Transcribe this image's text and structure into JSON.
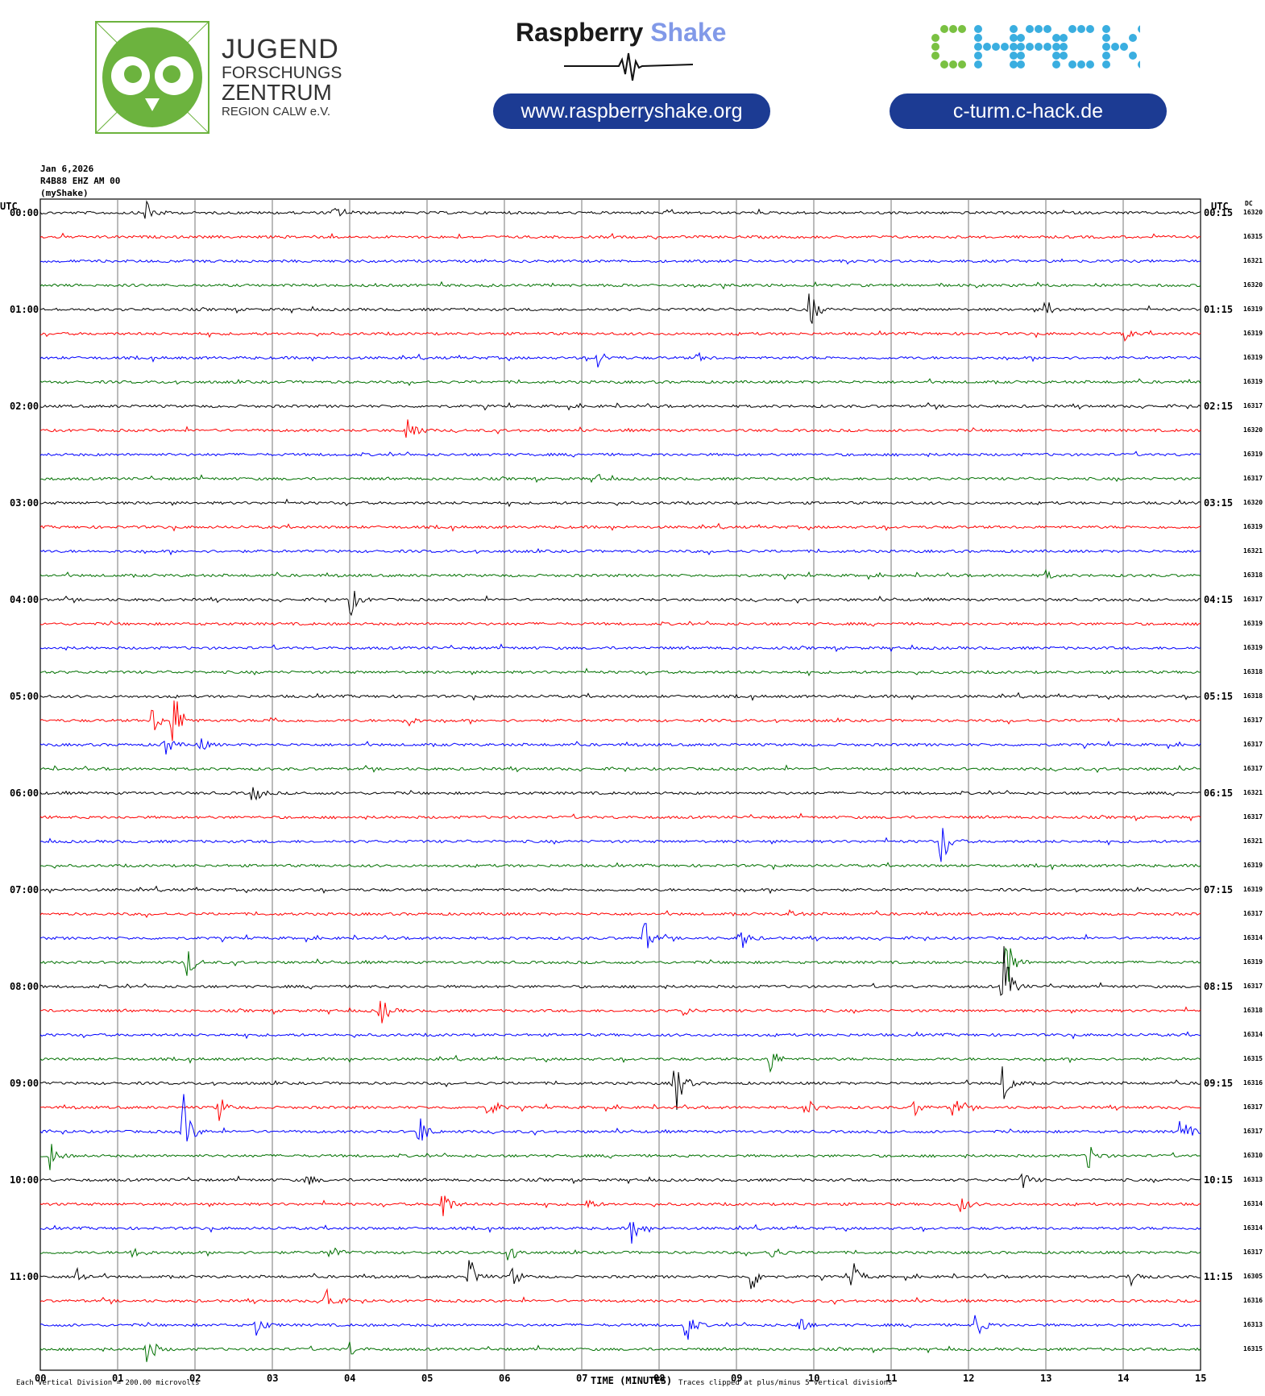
{
  "logos": {
    "jfz_lines": [
      "JUGEND",
      "FORSCHUNGS",
      "ZENTRUM",
      "REGION CALW e.V."
    ],
    "jfz_color": "#6cb33e",
    "rs_word1": "Raspberry",
    "rs_word2": "Shake",
    "rs_url": "www.raspberryshake.org",
    "chack_text": "CHACK",
    "chack_url": "c-turm.c-hack.de",
    "pill_color": "#1c3b93"
  },
  "header": {
    "date": "Jan 6,2026",
    "station": "R4B88 EHZ AM 00",
    "source": "(myShake)"
  },
  "chart_data": {
    "type": "line",
    "subtype": "helicorder",
    "left_axis_title": "UTC",
    "right_axis_title": "UTC",
    "dc_title": "DC",
    "xlabel": "TIME (MINUTES)",
    "x_ticks": [
      "00",
      "01",
      "02",
      "03",
      "04",
      "05",
      "06",
      "07",
      "08",
      "09",
      "10",
      "11",
      "12",
      "13",
      "14",
      "15"
    ],
    "xlim": [
      0,
      15
    ],
    "trace_colors": [
      "#000000",
      "#ff0000",
      "#0000ff",
      "#007000"
    ],
    "hour_labels_left": [
      "00:00",
      "01:00",
      "02:00",
      "03:00",
      "04:00",
      "05:00",
      "06:00",
      "07:00",
      "08:00",
      "09:00",
      "10:00",
      "11:00"
    ],
    "hour_labels_right": [
      "00:15",
      "01:15",
      "02:15",
      "03:15",
      "04:15",
      "05:15",
      "06:15",
      "07:15",
      "08:15",
      "09:15",
      "10:15",
      "11:15"
    ],
    "dc_values": [
      "16320",
      "16315",
      "16321",
      "16320",
      "16319",
      "16319",
      "16319",
      "16319",
      "16317",
      "16320",
      "16319",
      "16317",
      "16320",
      "16319",
      "16321",
      "16318",
      "16317",
      "16319",
      "16319",
      "16318",
      "16318",
      "16317",
      "16317",
      "16317",
      "16321",
      "16317",
      "16321",
      "16319",
      "16319",
      "16317",
      "16314",
      "16319",
      "16317",
      "16318",
      "16314",
      "16315",
      "16316",
      "16317",
      "16317",
      "16310",
      "16313",
      "16314",
      "16314",
      "16317",
      "16305",
      "16316",
      "16313",
      "16315"
    ],
    "footer_scale": "Each Vertical Division =  200.00 microvolts",
    "footer_clip": "Traces clipped at plus/minus 5 vertical divisions",
    "events": [
      {
        "row": 0,
        "min": 1.38,
        "amp": 20
      },
      {
        "row": 0,
        "min": 3.8,
        "amp": 8
      },
      {
        "row": 4,
        "min": 9.95,
        "amp": 28
      },
      {
        "row": 4,
        "min": 13.0,
        "amp": 14
      },
      {
        "row": 5,
        "min": 14.0,
        "amp": 10
      },
      {
        "row": 6,
        "min": 7.2,
        "amp": 14
      },
      {
        "row": 6,
        "min": 8.5,
        "amp": 6
      },
      {
        "row": 9,
        "min": 4.75,
        "amp": 30
      },
      {
        "row": 11,
        "min": 7.2,
        "amp": 6
      },
      {
        "row": 15,
        "min": 13.0,
        "amp": 6
      },
      {
        "row": 16,
        "min": 4.0,
        "amp": 24
      },
      {
        "row": 21,
        "min": 1.72,
        "amp": 50
      },
      {
        "row": 21,
        "min": 1.45,
        "amp": 22
      },
      {
        "row": 21,
        "min": 4.7,
        "amp": 14
      },
      {
        "row": 21,
        "min": 3.0,
        "amp": 6
      },
      {
        "row": 22,
        "min": 1.6,
        "amp": 18
      },
      {
        "row": 22,
        "min": 2.05,
        "amp": 12
      },
      {
        "row": 24,
        "min": 2.75,
        "amp": 16
      },
      {
        "row": 26,
        "min": 11.65,
        "amp": 38
      },
      {
        "row": 29,
        "min": 9.7,
        "amp": 5
      },
      {
        "row": 30,
        "min": 7.8,
        "amp": 28
      },
      {
        "row": 30,
        "min": 9.05,
        "amp": 18
      },
      {
        "row": 31,
        "min": 1.9,
        "amp": 22
      },
      {
        "row": 31,
        "min": 12.5,
        "amp": 40
      },
      {
        "row": 32,
        "min": 12.45,
        "amp": 60
      },
      {
        "row": 33,
        "min": 4.4,
        "amp": 22
      },
      {
        "row": 33,
        "min": 8.3,
        "amp": 8
      },
      {
        "row": 35,
        "min": 9.4,
        "amp": 30
      },
      {
        "row": 36,
        "min": 8.2,
        "amp": 50
      },
      {
        "row": 36,
        "min": 12.45,
        "amp": 30
      },
      {
        "row": 37,
        "min": 2.3,
        "amp": 20
      },
      {
        "row": 37,
        "min": 5.8,
        "amp": 20
      },
      {
        "row": 37,
        "min": 9.9,
        "amp": 14
      },
      {
        "row": 37,
        "min": 11.8,
        "amp": 16
      },
      {
        "row": 37,
        "min": 11.3,
        "amp": 12
      },
      {
        "row": 38,
        "min": 1.85,
        "amp": 48
      },
      {
        "row": 38,
        "min": 4.9,
        "amp": 24
      },
      {
        "row": 38,
        "min": 14.75,
        "amp": 26
      },
      {
        "row": 39,
        "min": 0.12,
        "amp": 20
      },
      {
        "row": 39,
        "min": 13.55,
        "amp": 20
      },
      {
        "row": 40,
        "min": 3.45,
        "amp": 10
      },
      {
        "row": 40,
        "min": 12.7,
        "amp": 12
      },
      {
        "row": 41,
        "min": 5.2,
        "amp": 24
      },
      {
        "row": 41,
        "min": 7.05,
        "amp": 10
      },
      {
        "row": 41,
        "min": 11.9,
        "amp": 12
      },
      {
        "row": 42,
        "min": 7.65,
        "amp": 22
      },
      {
        "row": 43,
        "min": 1.2,
        "amp": 14
      },
      {
        "row": 43,
        "min": 6.05,
        "amp": 22
      },
      {
        "row": 43,
        "min": 3.75,
        "amp": 12
      },
      {
        "row": 43,
        "min": 9.45,
        "amp": 12
      },
      {
        "row": 44,
        "min": 0.45,
        "amp": 18
      },
      {
        "row": 44,
        "min": 5.55,
        "amp": 28
      },
      {
        "row": 44,
        "min": 6.1,
        "amp": 16
      },
      {
        "row": 44,
        "min": 9.2,
        "amp": 22
      },
      {
        "row": 44,
        "min": 10.5,
        "amp": 22
      },
      {
        "row": 44,
        "min": 14.1,
        "amp": 16
      },
      {
        "row": 45,
        "min": 3.7,
        "amp": 24
      },
      {
        "row": 46,
        "min": 2.8,
        "amp": 16
      },
      {
        "row": 46,
        "min": 8.35,
        "amp": 26
      },
      {
        "row": 46,
        "min": 9.8,
        "amp": 16
      },
      {
        "row": 46,
        "min": 12.1,
        "amp": 20
      },
      {
        "row": 47,
        "min": 1.38,
        "amp": 26
      },
      {
        "row": 47,
        "min": 4.0,
        "amp": 10
      }
    ]
  }
}
